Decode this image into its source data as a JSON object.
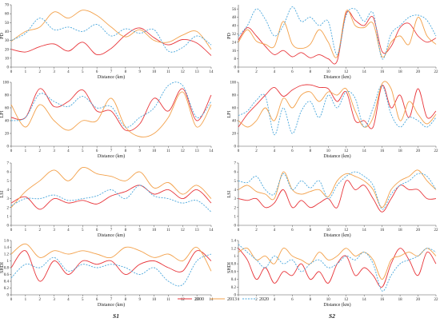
{
  "figure": {
    "column_labels": [
      "S1",
      "S2"
    ],
    "legend": [
      {
        "label": "2000",
        "color": "#e8363b",
        "dash": ""
      },
      {
        "label": "2013",
        "color": "#f3a14b",
        "dash": ""
      },
      {
        "label": "2020",
        "color": "#4aa7dc",
        "dash": "2,1.5"
      }
    ]
  },
  "chart_data": [
    {
      "type": "line",
      "panel": "S1-PD",
      "ylabel": "PD",
      "xlabel": "Distance (km)",
      "xlim": [
        0,
        14
      ],
      "xticks": [
        0,
        1,
        2,
        3,
        4,
        5,
        6,
        7,
        8,
        9,
        10,
        11,
        12,
        13,
        14
      ],
      "ylim": [
        0,
        70
      ],
      "yticks": [
        0,
        10,
        20,
        30,
        40,
        50,
        60,
        70
      ],
      "x": [
        0,
        1,
        2,
        3,
        4,
        5,
        6,
        7,
        8,
        9,
        10,
        11,
        12,
        13,
        14
      ],
      "series": [
        {
          "name": "2000",
          "values": [
            20,
            17,
            23,
            26,
            18,
            28,
            14,
            21,
            36,
            44,
            33,
            25,
            31,
            27,
            13
          ]
        },
        {
          "name": "2013",
          "values": [
            29,
            40,
            45,
            62,
            55,
            64,
            58,
            45,
            34,
            42,
            30,
            28,
            36,
            40,
            20
          ]
        },
        {
          "name": "2020",
          "values": [
            30,
            38,
            55,
            42,
            45,
            40,
            48,
            35,
            43,
            38,
            42,
            18,
            22,
            35,
            25
          ]
        }
      ]
    },
    {
      "type": "line",
      "panel": "S2-PD",
      "ylabel": "PD",
      "xlabel": "Distance (km)",
      "xlim": [
        0,
        22
      ],
      "xticks": [
        0,
        2,
        4,
        6,
        8,
        10,
        12,
        14,
        16,
        18,
        20,
        22
      ],
      "ylim": [
        0,
        60
      ],
      "yticks": [
        0,
        8,
        16,
        24,
        32,
        40,
        48,
        56
      ],
      "x": [
        0,
        1,
        2,
        3,
        4,
        5,
        6,
        7,
        8,
        9,
        10,
        11,
        12,
        13,
        14,
        15,
        16,
        17,
        18,
        19,
        20,
        21,
        22
      ],
      "series": [
        {
          "name": "2000",
          "values": [
            26,
            38,
            30,
            20,
            12,
            16,
            10,
            14,
            9,
            12,
            8,
            6,
            52,
            45,
            40,
            48,
            15,
            20,
            38,
            42,
            30,
            24,
            28
          ]
        },
        {
          "name": "2013",
          "values": [
            24,
            36,
            25,
            22,
            20,
            44,
            22,
            18,
            22,
            36,
            24,
            10,
            54,
            40,
            38,
            42,
            10,
            24,
            30,
            22,
            48,
            30,
            22
          ]
        },
        {
          "name": "2020",
          "values": [
            30,
            40,
            56,
            46,
            30,
            40,
            58,
            44,
            48,
            40,
            44,
            12,
            50,
            56,
            44,
            52,
            8,
            32,
            40,
            48,
            50,
            45,
            30
          ]
        }
      ]
    },
    {
      "type": "line",
      "panel": "S1-LPI",
      "ylabel": "LPI",
      "xlabel": "Distance (km)",
      "xlim": [
        0,
        14
      ],
      "xticks": [
        0,
        1,
        2,
        3,
        4,
        5,
        6,
        7,
        8,
        9,
        10,
        11,
        12,
        13,
        14
      ],
      "ylim": [
        0,
        100
      ],
      "yticks": [
        0,
        20,
        40,
        60,
        80,
        100
      ],
      "x": [
        0,
        1,
        2,
        3,
        4,
        5,
        6,
        7,
        8,
        9,
        10,
        11,
        12,
        13,
        14
      ],
      "series": [
        {
          "name": "2000",
          "values": [
            45,
            45,
            90,
            62,
            70,
            88,
            55,
            55,
            25,
            35,
            75,
            55,
            90,
            40,
            80
          ]
        },
        {
          "name": "2013",
          "values": [
            65,
            30,
            65,
            40,
            25,
            40,
            40,
            75,
            30,
            15,
            20,
            45,
            85,
            30,
            65
          ]
        },
        {
          "name": "2020",
          "values": [
            40,
            45,
            82,
            70,
            62,
            78,
            60,
            62,
            30,
            45,
            60,
            95,
            95,
            45,
            70
          ]
        }
      ]
    },
    {
      "type": "line",
      "panel": "S2-LPI",
      "ylabel": "LPI",
      "xlabel": "Distance (km)",
      "xlim": [
        0,
        22
      ],
      "xticks": [
        0,
        2,
        4,
        6,
        8,
        10,
        12,
        14,
        16,
        18,
        20,
        22
      ],
      "ylim": [
        0,
        100
      ],
      "yticks": [
        0,
        20,
        40,
        60,
        80,
        100
      ],
      "x": [
        0,
        1,
        2,
        3,
        4,
        5,
        6,
        7,
        8,
        9,
        10,
        11,
        12,
        13,
        14,
        15,
        16,
        17,
        18,
        19,
        20,
        21,
        22
      ],
      "series": [
        {
          "name": "2000",
          "values": [
            30,
            50,
            65,
            80,
            92,
            78,
            88,
            95,
            96,
            92,
            90,
            70,
            85,
            40,
            40,
            30,
            95,
            60,
            80,
            45,
            90,
            45,
            55
          ]
        },
        {
          "name": "2013",
          "values": [
            40,
            30,
            40,
            60,
            40,
            75,
            60,
            80,
            85,
            70,
            85,
            80,
            90,
            55,
            30,
            45,
            98,
            90,
            40,
            70,
            50,
            35,
            50
          ]
        },
        {
          "name": "2020",
          "values": [
            48,
            55,
            72,
            78,
            18,
            60,
            20,
            55,
            70,
            45,
            80,
            60,
            85,
            75,
            30,
            60,
            95,
            50,
            30,
            45,
            40,
            30,
            45
          ]
        }
      ]
    },
    {
      "type": "line",
      "panel": "S1-LSI",
      "ylabel": "LSI",
      "xlabel": "Distance (km)",
      "xlim": [
        0,
        14
      ],
      "xticks": [
        0,
        1,
        2,
        3,
        4,
        5,
        6,
        7,
        8,
        9,
        10,
        11,
        12,
        13,
        14
      ],
      "ylim": [
        0,
        7
      ],
      "yticks": [
        0,
        1,
        2,
        3,
        4,
        5,
        6,
        7
      ],
      "x": [
        0,
        1,
        2,
        3,
        4,
        5,
        6,
        7,
        8,
        9,
        10,
        11,
        12,
        13,
        14
      ],
      "series": [
        {
          "name": "2000",
          "values": [
            2.5,
            3.2,
            1.8,
            3.0,
            2.5,
            2.8,
            2.4,
            3.3,
            3.8,
            4.5,
            3.5,
            4.0,
            3.0,
            4.0,
            2.5
          ]
        },
        {
          "name": "2013",
          "values": [
            2.0,
            3.8,
            5.0,
            6.2,
            5.0,
            6.5,
            5.8,
            5.5,
            5.0,
            6.0,
            4.2,
            4.8,
            3.5,
            4.5,
            3.0
          ]
        },
        {
          "name": "2020",
          "values": [
            2.2,
            3.0,
            3.0,
            3.4,
            2.8,
            3.0,
            3.3,
            4.0,
            3.0,
            4.5,
            3.3,
            3.0,
            2.5,
            2.8,
            1.5
          ]
        }
      ]
    },
    {
      "type": "line",
      "panel": "S2-LSI",
      "ylabel": "LSI",
      "xlabel": "Distance (km)",
      "xlim": [
        0,
        22
      ],
      "xticks": [
        0,
        2,
        4,
        6,
        8,
        10,
        12,
        14,
        16,
        18,
        20,
        22
      ],
      "ylim": [
        0,
        7
      ],
      "yticks": [
        0,
        1,
        2,
        3,
        4,
        5,
        6,
        7
      ],
      "x": [
        0,
        1,
        2,
        3,
        4,
        5,
        6,
        7,
        8,
        9,
        10,
        11,
        12,
        13,
        14,
        15,
        16,
        17,
        18,
        19,
        20,
        21,
        22
      ],
      "series": [
        {
          "name": "2000",
          "values": [
            3.0,
            2.8,
            3.0,
            2.0,
            2.5,
            4.0,
            2.0,
            2.8,
            2.0,
            2.5,
            3.0,
            2.0,
            5.0,
            4.0,
            4.5,
            3.0,
            1.5,
            3.0,
            4.5,
            4.0,
            4.0,
            3.0,
            3.0
          ]
        },
        {
          "name": "2013",
          "values": [
            4.0,
            4.5,
            3.8,
            3.5,
            3.0,
            6.0,
            4.0,
            3.5,
            3.8,
            4.0,
            3.2,
            5.0,
            5.8,
            5.5,
            5.0,
            4.0,
            2.0,
            4.0,
            5.0,
            5.5,
            6.2,
            5.0,
            4.0
          ]
        },
        {
          "name": "2020",
          "values": [
            5.0,
            4.8,
            5.5,
            4.0,
            3.5,
            5.8,
            4.0,
            5.0,
            4.2,
            5.0,
            3.0,
            4.5,
            5.5,
            6.0,
            5.5,
            4.5,
            1.8,
            3.5,
            4.5,
            5.0,
            5.8,
            5.5,
            4.0
          ]
        }
      ]
    },
    {
      "type": "line",
      "panel": "S1-SHDI",
      "ylabel": "SHDI",
      "xlabel": "Distance (km)",
      "xlim": [
        0,
        14
      ],
      "xticks": [
        0,
        1,
        2,
        3,
        4,
        5,
        6,
        7,
        8,
        9,
        10,
        11,
        12,
        13,
        14
      ],
      "ylim": [
        0,
        1.6
      ],
      "yticks": [
        0,
        0.2,
        0.4,
        0.6,
        0.8,
        1.0,
        1.2,
        1.4,
        1.6
      ],
      "x": [
        0,
        1,
        2,
        3,
        4,
        5,
        6,
        7,
        8,
        9,
        10,
        11,
        12,
        13,
        14
      ],
      "series": [
        {
          "name": "2000",
          "values": [
            0.8,
            1.3,
            0.4,
            1.0,
            0.6,
            1.0,
            0.9,
            1.0,
            0.6,
            0.9,
            1.0,
            0.8,
            0.7,
            1.3,
            1.0
          ]
        },
        {
          "name": "2013",
          "values": [
            1.2,
            1.5,
            1.1,
            1.3,
            1.2,
            1.3,
            1.2,
            1.1,
            1.4,
            1.3,
            1.1,
            1.2,
            1.0,
            1.4,
            0.7
          ]
        },
        {
          "name": "2020",
          "values": [
            0.5,
            0.9,
            0.8,
            1.1,
            0.7,
            0.9,
            0.8,
            0.9,
            0.8,
            0.6,
            0.8,
            0.4,
            0.3,
            1.0,
            1.2
          ]
        }
      ]
    },
    {
      "type": "line",
      "panel": "S2-SHDI",
      "ylabel": "SHDI",
      "xlabel": "Distance (km)",
      "xlim": [
        0,
        22
      ],
      "xticks": [
        0,
        2,
        4,
        6,
        8,
        10,
        12,
        14,
        16,
        18,
        20,
        22
      ],
      "ylim": [
        0,
        1.4
      ],
      "yticks": [
        0,
        0.2,
        0.4,
        0.6,
        0.8,
        1.0,
        1.2,
        1.4
      ],
      "x": [
        0,
        1,
        2,
        3,
        4,
        5,
        6,
        7,
        8,
        9,
        10,
        11,
        12,
        13,
        14,
        15,
        16,
        17,
        18,
        19,
        20,
        21,
        22
      ],
      "series": [
        {
          "name": "2000",
          "values": [
            1.2,
            0.9,
            0.4,
            0.7,
            0.3,
            0.6,
            0.5,
            0.8,
            0.4,
            0.6,
            0.3,
            0.8,
            1.0,
            0.5,
            0.7,
            0.5,
            0.2,
            0.8,
            1.2,
            0.9,
            0.5,
            1.1,
            0.8
          ]
        },
        {
          "name": "2013",
          "values": [
            1.1,
            1.2,
            0.9,
            1.0,
            0.8,
            1.2,
            1.0,
            0.9,
            0.8,
            1.1,
            0.9,
            1.0,
            1.2,
            1.0,
            1.1,
            0.9,
            0.4,
            0.9,
            1.0,
            1.1,
            1.0,
            1.2,
            1.0
          ]
        },
        {
          "name": "2020",
          "values": [
            1.3,
            1.1,
            0.9,
            0.7,
            1.0,
            0.8,
            0.9,
            0.6,
            0.8,
            0.9,
            0.7,
            0.8,
            1.0,
            0.9,
            1.1,
            0.8,
            0.1,
            0.5,
            0.8,
            0.9,
            1.0,
            1.2,
            1.1
          ]
        }
      ]
    }
  ]
}
